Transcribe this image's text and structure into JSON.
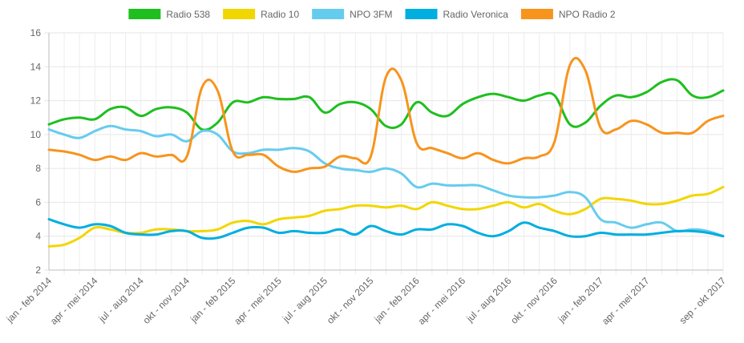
{
  "chart_data": {
    "type": "line",
    "title": "",
    "xlabel": "",
    "ylabel": "",
    "ylim": [
      2,
      16
    ],
    "yticks": [
      2,
      4,
      6,
      8,
      10,
      12,
      14,
      16
    ],
    "grid": true,
    "legend_position": "top",
    "x_labels": [
      "jan - feb 2014",
      "apr - mei 2014",
      "jul - aug 2014",
      "okt - nov 2014",
      "jan - feb 2015",
      "apr - mei 2015",
      "jul - aug 2015",
      "okt - nov 2015",
      "jan - feb 2016",
      "apr - mei 2016",
      "jul - aug 2016",
      "okt - nov 2016",
      "jan - feb 2017",
      "apr - mei 2017",
      "sep - okt 2017"
    ],
    "x_label_indices": [
      0,
      3,
      6,
      9,
      12,
      15,
      18,
      21,
      24,
      27,
      30,
      33,
      36,
      39,
      44
    ],
    "n_points": 45,
    "series": [
      {
        "name": "Radio 538",
        "color": "#1fbf1f",
        "values": [
          10.6,
          10.9,
          11.0,
          10.9,
          11.5,
          11.6,
          11.1,
          11.5,
          11.6,
          11.3,
          10.3,
          10.7,
          11.9,
          11.9,
          12.2,
          12.1,
          12.1,
          12.2,
          11.3,
          11.8,
          11.9,
          11.5,
          10.5,
          10.6,
          11.9,
          11.3,
          11.1,
          11.8,
          12.2,
          12.4,
          12.2,
          12.0,
          12.3,
          12.3,
          10.6,
          10.7,
          11.7,
          12.3,
          12.2,
          12.5,
          13.1,
          13.2,
          12.3,
          12.2,
          12.6
        ]
      },
      {
        "name": "Radio 10",
        "color": "#f2d600",
        "values": [
          3.4,
          3.5,
          3.9,
          4.5,
          4.4,
          4.2,
          4.2,
          4.4,
          4.4,
          4.3,
          4.3,
          4.4,
          4.8,
          4.9,
          4.7,
          5.0,
          5.1,
          5.2,
          5.5,
          5.6,
          5.8,
          5.8,
          5.7,
          5.8,
          5.6,
          6.0,
          5.8,
          5.6,
          5.6,
          5.8,
          6.0,
          5.7,
          5.9,
          5.5,
          5.3,
          5.6,
          6.2,
          6.2,
          6.1,
          5.9,
          5.9,
          6.1,
          6.4,
          6.5,
          6.9
        ]
      },
      {
        "name": "NPO 3FM",
        "color": "#66ccee",
        "values": [
          10.3,
          10.0,
          9.8,
          10.2,
          10.5,
          10.3,
          10.2,
          9.9,
          10.0,
          9.6,
          10.2,
          10.0,
          9.0,
          8.9,
          9.1,
          9.1,
          9.2,
          9.0,
          8.3,
          8.0,
          7.9,
          7.8,
          8.0,
          7.7,
          6.9,
          7.1,
          7.0,
          7.0,
          7.0,
          6.7,
          6.4,
          6.3,
          6.3,
          6.4,
          6.6,
          6.3,
          5.0,
          4.8,
          4.5,
          4.7,
          4.8,
          4.3,
          4.4,
          4.3,
          4.0
        ]
      },
      {
        "name": "Radio Veronica",
        "color": "#00aee0",
        "values": [
          5.0,
          4.7,
          4.5,
          4.7,
          4.6,
          4.2,
          4.1,
          4.1,
          4.3,
          4.3,
          3.9,
          3.9,
          4.2,
          4.5,
          4.5,
          4.2,
          4.3,
          4.2,
          4.2,
          4.4,
          4.1,
          4.6,
          4.3,
          4.1,
          4.4,
          4.4,
          4.7,
          4.6,
          4.2,
          4.0,
          4.3,
          4.8,
          4.5,
          4.3,
          4.0,
          4.0,
          4.2,
          4.1,
          4.1,
          4.1,
          4.2,
          4.3,
          4.3,
          4.2,
          4.0
        ]
      },
      {
        "name": "NPO Radio 2",
        "color": "#f7941d",
        "values": [
          9.1,
          9.0,
          8.8,
          8.5,
          8.7,
          8.5,
          8.9,
          8.7,
          8.8,
          8.7,
          12.8,
          12.6,
          9.0,
          8.8,
          8.8,
          8.1,
          7.8,
          8.0,
          8.1,
          8.7,
          8.6,
          8.7,
          13.4,
          13.2,
          9.5,
          9.2,
          8.9,
          8.6,
          8.9,
          8.5,
          8.3,
          8.6,
          8.7,
          9.6,
          14.1,
          13.8,
          10.4,
          10.3,
          10.8,
          10.6,
          10.1,
          10.1,
          10.1,
          10.8,
          11.1
        ]
      }
    ]
  }
}
